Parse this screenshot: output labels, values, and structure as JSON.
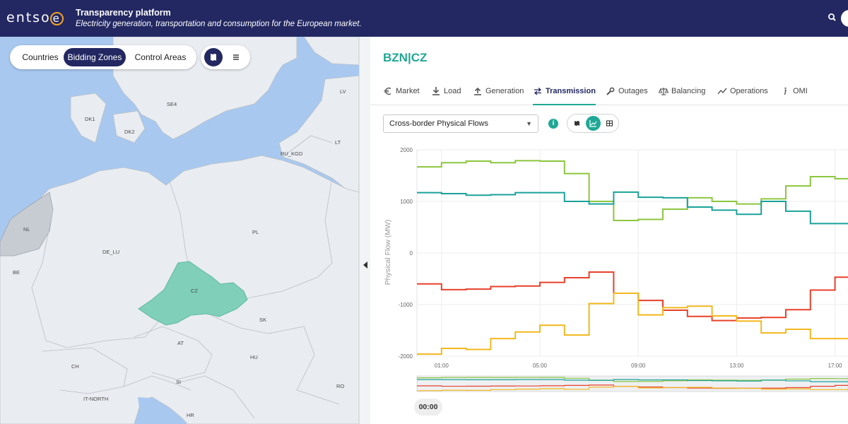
{
  "header": {
    "logo_prefix": "entso",
    "logo_o": "e",
    "title": "Transparency platform",
    "subtitle": "Electricity generation, transportation and consumption for the European market.",
    "icons": [
      "search-icon",
      "user-icon"
    ]
  },
  "map": {
    "area_buttons": [
      "Countries",
      "Bidding Zones",
      "Control Areas"
    ],
    "active_area": "Bidding Zones",
    "view_icons": [
      "map-icon",
      "list-icon"
    ],
    "highlight_color": "#7fcfb9",
    "zones": {
      "dk1": "DK1",
      "dk2": "DK2",
      "se4": "SE4",
      "lv": "LV",
      "lt": "LT",
      "ru_kgd": "RU_KGD",
      "nl": "NL",
      "be": "BE",
      "de_lu": "DE_LU",
      "pl": "PL",
      "cz": "CZ",
      "sk": "SK",
      "at": "AT",
      "hu": "HU",
      "ch": "CH",
      "si": "SI",
      "ro": "RO",
      "it_north": "IT-NORTH",
      "hr": "HR"
    }
  },
  "panel": {
    "zone_title": "BZN|CZ",
    "accent_color": "#1fa895",
    "tabs": [
      {
        "label": "Market",
        "icon": "euro-icon"
      },
      {
        "label": "Load",
        "icon": "download-icon"
      },
      {
        "label": "Generation",
        "icon": "upload-icon"
      },
      {
        "label": "Transmission",
        "icon": "transfer-icon"
      },
      {
        "label": "Outages",
        "icon": "wrench-icon"
      },
      {
        "label": "Balancing",
        "icon": "scale-icon"
      },
      {
        "label": "Operations",
        "icon": "trend-icon"
      },
      {
        "label": "OMI",
        "icon": "info-italic-icon"
      }
    ],
    "active_tab": "Transmission",
    "dataset_select": "Cross-border Physical Flows",
    "chart_views": [
      "map-icon",
      "line-chart-icon",
      "table-icon"
    ],
    "active_chart_view": "line-chart-icon",
    "time_value": "00:00"
  },
  "chart_data": {
    "type": "line",
    "ylabel": "Physical Flow (MW)",
    "ylim": [
      -2000,
      2000
    ],
    "yticks": [
      "2000",
      "1000",
      "0",
      "-1000",
      "-2000"
    ],
    "xticks": [
      "01:00",
      "05:00",
      "09:00",
      "13:00",
      "17:00"
    ],
    "step": true,
    "x_hours": [
      0,
      1,
      2,
      3,
      4,
      5,
      6,
      7,
      8,
      9,
      10,
      11,
      12,
      13,
      14,
      15,
      16,
      17,
      18
    ],
    "series": [
      {
        "color": "#8cc63f",
        "values": [
          1670,
          1750,
          1780,
          1750,
          1790,
          1780,
          1540,
          1000,
          630,
          650,
          850,
          1070,
          1000,
          950,
          1050,
          1300,
          1480,
          1440,
          1440
        ]
      },
      {
        "color": "#1aa29a",
        "values": [
          1170,
          1150,
          1120,
          1130,
          1170,
          1170,
          1000,
          950,
          1180,
          1080,
          1070,
          890,
          830,
          750,
          1000,
          810,
          570,
          570,
          570
        ]
      },
      {
        "color": "#e8412c",
        "values": [
          -600,
          -710,
          -700,
          -650,
          -640,
          -570,
          -480,
          -370,
          -780,
          -920,
          -1110,
          -1230,
          -1310,
          -1260,
          -1250,
          -1100,
          -720,
          -470,
          -470
        ]
      },
      {
        "color": "#f2b81e",
        "values": [
          -1960,
          -1850,
          -1870,
          -1660,
          -1530,
          -1400,
          -1590,
          -980,
          -780,
          -1200,
          -1060,
          -1030,
          -1220,
          -1320,
          -1550,
          -1480,
          -1660,
          -1660,
          -1660
        ]
      }
    ]
  }
}
